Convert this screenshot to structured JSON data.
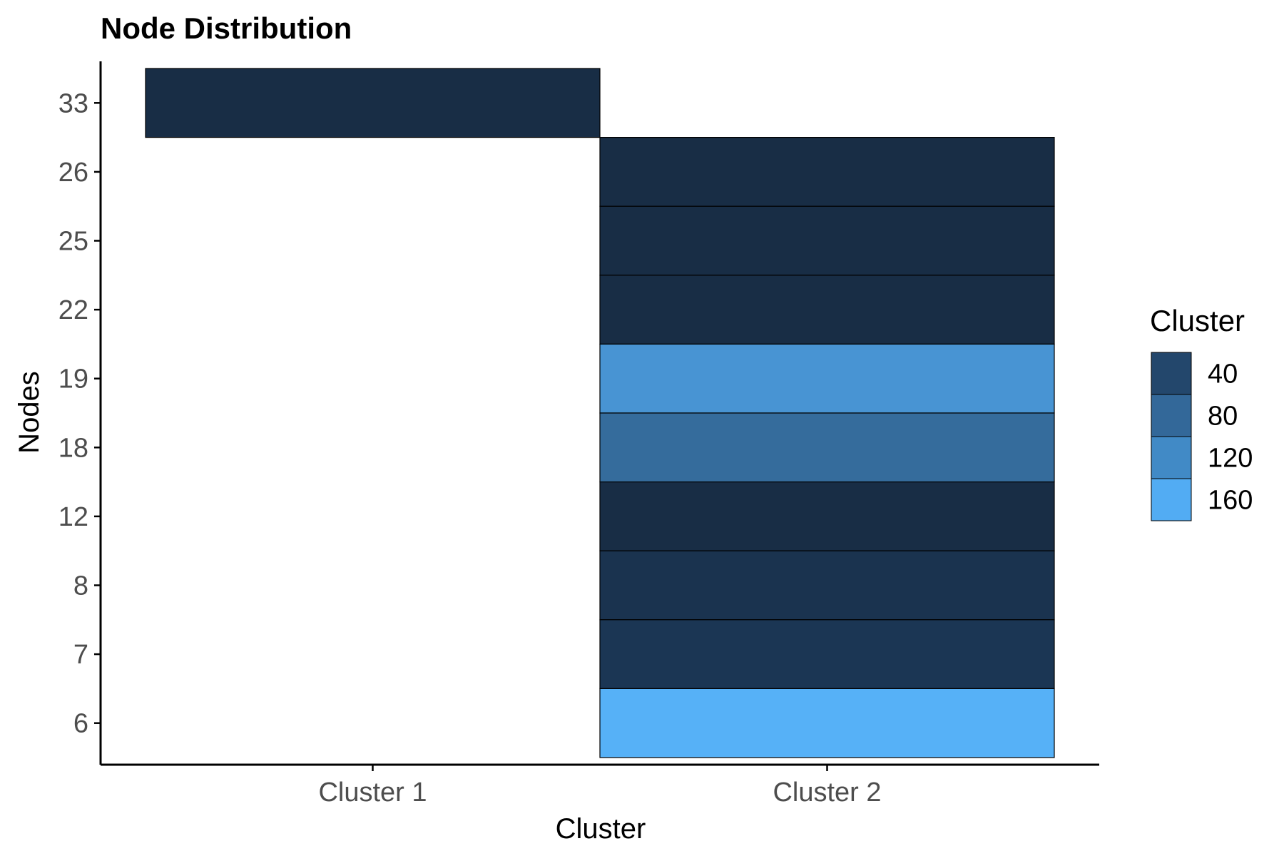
{
  "chart_data": {
    "type": "heatmap",
    "title": "Node Distribution",
    "xlabel": "Cluster",
    "ylabel": "Nodes",
    "x_categories": [
      "Cluster 1",
      "Cluster 2"
    ],
    "y_categories": [
      "6",
      "7",
      "8",
      "12",
      "18",
      "19",
      "22",
      "25",
      "26",
      "33"
    ],
    "cells": [
      {
        "x": "Cluster 1",
        "y": "33",
        "value": 10,
        "color": "#182d45"
      },
      {
        "x": "Cluster 2",
        "y": "26",
        "value": 10,
        "color": "#182d45"
      },
      {
        "x": "Cluster 2",
        "y": "25",
        "value": 10,
        "color": "#182d45"
      },
      {
        "x": "Cluster 2",
        "y": "22",
        "value": 10,
        "color": "#182d45"
      },
      {
        "x": "Cluster 2",
        "y": "19",
        "value": 130,
        "color": "#4894d3"
      },
      {
        "x": "Cluster 2",
        "y": "18",
        "value": 90,
        "color": "#356c9c"
      },
      {
        "x": "Cluster 2",
        "y": "12",
        "value": 10,
        "color": "#182d45"
      },
      {
        "x": "Cluster 2",
        "y": "8",
        "value": 18,
        "color": "#1a334f"
      },
      {
        "x": "Cluster 2",
        "y": "7",
        "value": 22,
        "color": "#1b3654"
      },
      {
        "x": "Cluster 2",
        "y": "6",
        "value": 170,
        "color": "#56b1f7"
      }
    ],
    "legend": {
      "title": "Cluster",
      "position": "right",
      "items": [
        {
          "label": "40",
          "color": "#23476c"
        },
        {
          "label": "80",
          "color": "#336899"
        },
        {
          "label": "120",
          "color": "#418ac6"
        },
        {
          "label": "160",
          "color": "#52acf3"
        }
      ]
    },
    "grid": false
  }
}
